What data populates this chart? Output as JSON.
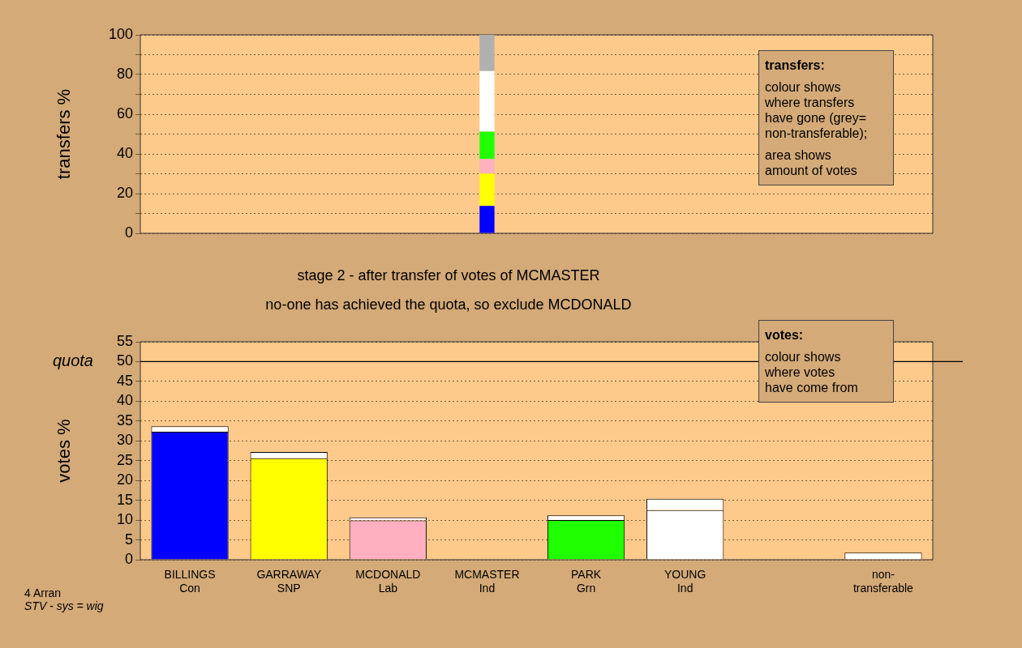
{
  "chart_data": [
    {
      "type": "bar",
      "stacked": true,
      "ylabel": "transfers %",
      "categories": [
        null,
        null,
        null,
        null,
        null,
        null,
        null,
        null
      ],
      "tick_labels": "y",
      "ylim": [
        0,
        100
      ],
      "yticks": [
        0,
        {
          "value": 10,
          "label": null
        },
        20,
        {
          "value": 30,
          "label": null
        },
        40,
        {
          "value": 50,
          "label": null
        },
        60,
        {
          "value": 70,
          "label": null
        },
        80,
        {
          "value": 90,
          "label": null
        },
        100
      ],
      "grid": true,
      "legend": false,
      "series": [
        {
          "color": "#0000ff",
          "values": [
            null,
            null,
            null,
            13.8,
            null,
            null,
            null,
            null
          ]
        },
        {
          "color": "#ffff00",
          "values": [
            null,
            null,
            null,
            16.3,
            null,
            null,
            null,
            null
          ]
        },
        {
          "color": "#ffb0c0",
          "values": [
            null,
            null,
            null,
            7.4,
            null,
            null,
            null,
            null
          ]
        },
        {
          "color": "#20ff00",
          "values": [
            null,
            null,
            null,
            13.7,
            null,
            null,
            null,
            null
          ]
        },
        {
          "color": "#ffffff",
          "values": [
            null,
            null,
            null,
            30.5,
            null,
            null,
            null,
            null
          ]
        },
        {
          "color": "#b0b0b0",
          "values": [
            null,
            null,
            null,
            18.3,
            null,
            null,
            null,
            null
          ]
        }
      ],
      "annotations": [
        "transfers:",
        "colour shows\nwhere transfers\nhave gone (grey=\nnon-transferable);",
        "area shows\namount of votes"
      ]
    },
    {
      "type": "bar",
      "stacked": true,
      "title": "stage 2 - after transfer of votes of MCMASTER",
      "subtitle": "no-one has achieved the quota, so exclude MCDONALD",
      "ylabel": "votes %",
      "categories": [
        "BILLINGS\nCon",
        "GARRAWAY\nSNP",
        "MCDONALD\nLab",
        "MCMASTER\nInd",
        "PARK\nGrn",
        "YOUNG\nInd",
        null,
        "non-\ntransferable"
      ],
      "ylim": [
        0,
        55
      ],
      "yticks": [
        0,
        5,
        10,
        15,
        20,
        25,
        30,
        35,
        40,
        45,
        50,
        55
      ],
      "grid": true,
      "legend": false,
      "ref_lines": [
        {
          "axis": "y",
          "value": 50,
          "label": "quota"
        }
      ],
      "series": [
        {
          "colors": [
            "#0000ff",
            "#ffff00",
            "#ffb0c0",
            "#ffffff",
            "#20ff00",
            "#ffffff",
            "#ffffff",
            "#ffffff"
          ],
          "values": [
            32.3,
            25.6,
            9.9,
            null,
            10.0,
            12.5,
            null,
            1.8
          ]
        },
        {
          "color": "#ffffff",
          "values": [
            1.4,
            1.6,
            0.8,
            null,
            1.2,
            2.9,
            null,
            null
          ]
        }
      ],
      "annotations": [
        "votes:",
        "colour shows\nwhere votes\nhave come from",
        "4 Arran",
        "STV - sys = wig"
      ]
    }
  ]
}
